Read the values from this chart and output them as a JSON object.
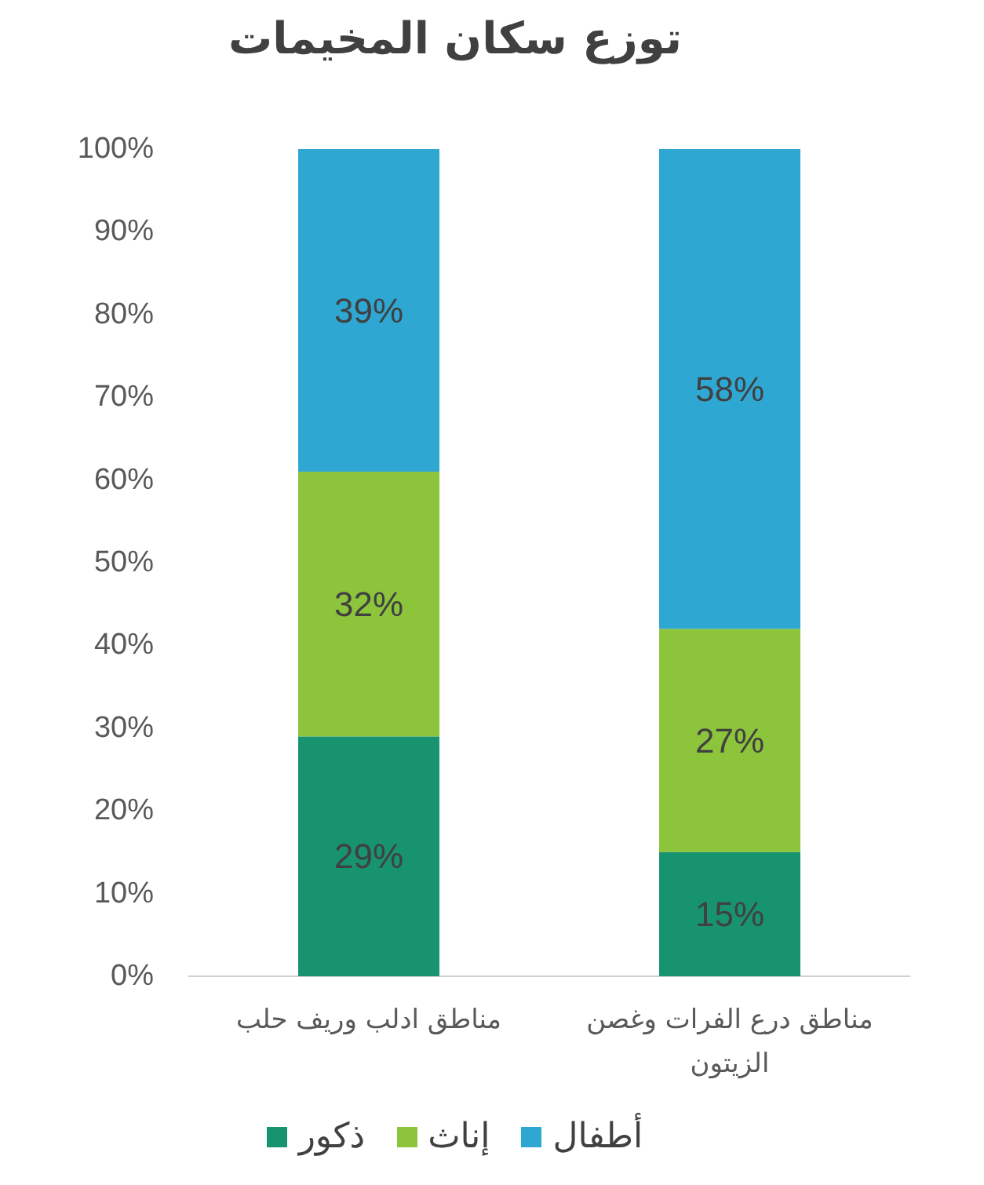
{
  "chart_data": {
    "type": "bar",
    "stacked": true,
    "title": "توزع سكان المخيمات",
    "categories": [
      "مناطق ادلب وريف حلب",
      "مناطق درع الفرات وغصن الزيتون"
    ],
    "series": [
      {
        "name": "ذكور",
        "color": "#17936f",
        "values": [
          29,
          15
        ],
        "value_labels": [
          "29%",
          "15%"
        ]
      },
      {
        "name": "إناث",
        "color": "#8cc43c",
        "values": [
          32,
          27
        ],
        "value_labels": [
          "32%",
          "27%"
        ]
      },
      {
        "name": "أطفال",
        "color": "#2ea8d3",
        "values": [
          39,
          58
        ],
        "value_labels": [
          "39%",
          "58%"
        ]
      }
    ],
    "ylim": [
      0,
      100
    ],
    "yticks": [
      {
        "value": 0,
        "label": "0%"
      },
      {
        "value": 10,
        "label": "10%"
      },
      {
        "value": 20,
        "label": "20%"
      },
      {
        "value": 30,
        "label": "30%"
      },
      {
        "value": 40,
        "label": "40%"
      },
      {
        "value": 50,
        "label": "50%"
      },
      {
        "value": 60,
        "label": "60%"
      },
      {
        "value": 70,
        "label": "70%"
      },
      {
        "value": 80,
        "label": "80%"
      },
      {
        "value": 90,
        "label": "90%"
      },
      {
        "value": 100,
        "label": "100%"
      }
    ],
    "legend": "bottom"
  }
}
